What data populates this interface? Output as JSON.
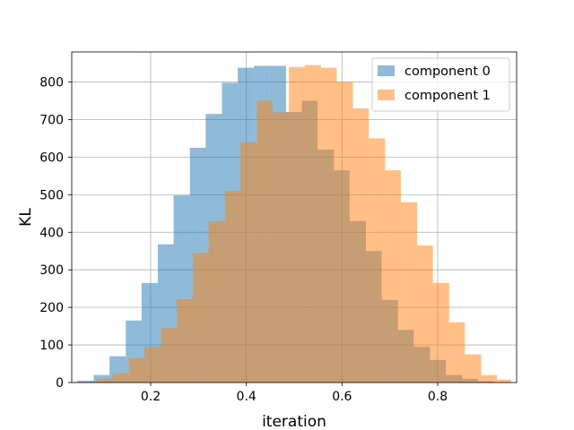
{
  "chart_data": {
    "type": "bar",
    "title": "",
    "xlabel": "iteration",
    "ylabel": "KL",
    "xlim": [
      0.035,
      0.965
    ],
    "ylim": [
      0,
      880
    ],
    "xticks": [
      0.2,
      0.4,
      0.6,
      0.8
    ],
    "xtick_labels": [
      "0.2",
      "0.4",
      "0.6",
      "0.8"
    ],
    "yticks": [
      0,
      100,
      200,
      300,
      400,
      500,
      600,
      700,
      800
    ],
    "ytick_labels": [
      "0",
      "100",
      "200",
      "300",
      "400",
      "500",
      "600",
      "700",
      "800"
    ],
    "grid": true,
    "legend_position": "top-right",
    "series": [
      {
        "name": "component 0",
        "color": "#1f77b4",
        "opacity": 0.5,
        "bin_edges": [
          0.047,
          0.081,
          0.114,
          0.148,
          0.181,
          0.215,
          0.248,
          0.282,
          0.315,
          0.349,
          0.382,
          0.416,
          0.449,
          0.483,
          0.516,
          0.549,
          0.583,
          0.616,
          0.65,
          0.683,
          0.717,
          0.75,
          0.784,
          0.817,
          0.851,
          0.884,
          0.918
        ],
        "counts": [
          5,
          20,
          70,
          165,
          265,
          368,
          498,
          625,
          715,
          798,
          838,
          843,
          843,
          720,
          750,
          620,
          565,
          430,
          350,
          220,
          140,
          95,
          60,
          20,
          10,
          3
        ]
      },
      {
        "name": "component 1",
        "color": "#ff7f0e",
        "opacity": 0.5,
        "bin_edges": [
          0.087,
          0.12,
          0.154,
          0.187,
          0.221,
          0.254,
          0.288,
          0.321,
          0.355,
          0.388,
          0.422,
          0.455,
          0.489,
          0.522,
          0.556,
          0.589,
          0.623,
          0.656,
          0.69,
          0.723,
          0.757,
          0.79,
          0.824,
          0.857,
          0.891,
          0.924,
          0.953
        ],
        "counts": [
          10,
          25,
          65,
          95,
          145,
          222,
          345,
          430,
          510,
          640,
          750,
          720,
          840,
          845,
          838,
          800,
          730,
          650,
          565,
          480,
          365,
          265,
          160,
          75,
          20,
          8
        ]
      }
    ]
  }
}
